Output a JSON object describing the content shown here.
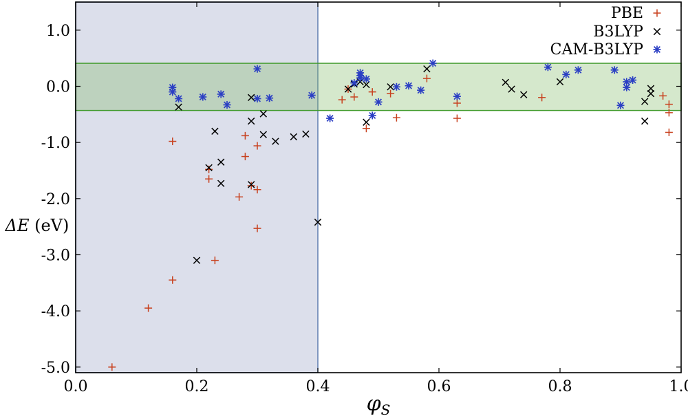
{
  "chart_data": {
    "type": "scatter",
    "xlabel": "φ",
    "xlabel_sub": "S",
    "ylabel": "ΔE",
    "ylabel_unit": " (eV)",
    "xlim": [
      0.0,
      1.0
    ],
    "ylim": [
      -5.1,
      1.5
    ],
    "xticks": [
      0.0,
      0.2,
      0.4,
      0.6,
      0.8,
      1.0
    ],
    "xtick_labels": [
      "0.0",
      "0.2",
      "0.4",
      "0.6",
      "0.8",
      "1.0"
    ],
    "yticks": [
      1.0,
      0.0,
      -1.0,
      -2.0,
      -3.0,
      -4.0,
      -5.0
    ],
    "ytick_labels": [
      "1.0",
      "0.0",
      "-1.0",
      "-2.0",
      "-3.0",
      "-4.0",
      "-5.0"
    ],
    "grid": false,
    "legend_position": "top-right",
    "shaded_regions": [
      {
        "kind": "vertical",
        "x_range": [
          0.0,
          0.4
        ],
        "color": "#8c96be"
      },
      {
        "kind": "horizontal",
        "y_range": [
          -0.43,
          0.41
        ],
        "color": "#7bb661"
      }
    ],
    "series": [
      {
        "name": "PBE",
        "marker": "plus",
        "color": "#c8411e",
        "points": [
          [
            0.06,
            -5.0
          ],
          [
            0.12,
            -3.95
          ],
          [
            0.16,
            -3.45
          ],
          [
            0.16,
            -0.98
          ],
          [
            0.22,
            -1.48
          ],
          [
            0.22,
            -1.65
          ],
          [
            0.23,
            -3.1
          ],
          [
            0.27,
            -1.97
          ],
          [
            0.28,
            -1.25
          ],
          [
            0.28,
            -0.88
          ],
          [
            0.29,
            -1.77
          ],
          [
            0.3,
            -1.06
          ],
          [
            0.3,
            -1.84
          ],
          [
            0.3,
            -2.53
          ],
          [
            0.44,
            -0.24
          ],
          [
            0.45,
            -0.05
          ],
          [
            0.46,
            -0.19
          ],
          [
            0.48,
            -0.75
          ],
          [
            0.49,
            -0.1
          ],
          [
            0.52,
            -0.13
          ],
          [
            0.53,
            -0.56
          ],
          [
            0.58,
            0.14
          ],
          [
            0.63,
            -0.3
          ],
          [
            0.63,
            -0.57
          ],
          [
            0.77,
            -0.2
          ],
          [
            0.97,
            -0.17
          ],
          [
            0.98,
            -0.32
          ],
          [
            0.98,
            -0.47
          ],
          [
            0.98,
            -0.82
          ]
        ]
      },
      {
        "name": "B3LYP",
        "marker": "cross",
        "color": "#000000",
        "points": [
          [
            0.17,
            -0.37
          ],
          [
            0.2,
            -3.1
          ],
          [
            0.22,
            -1.45
          ],
          [
            0.23,
            -0.8
          ],
          [
            0.24,
            -1.35
          ],
          [
            0.24,
            -1.73
          ],
          [
            0.29,
            -1.75
          ],
          [
            0.29,
            -0.2
          ],
          [
            0.29,
            -0.62
          ],
          [
            0.31,
            -0.49
          ],
          [
            0.31,
            -0.86
          ],
          [
            0.33,
            -0.98
          ],
          [
            0.36,
            -0.9
          ],
          [
            0.38,
            -0.85
          ],
          [
            0.4,
            -2.42
          ],
          [
            0.45,
            -0.05
          ],
          [
            0.46,
            0.04
          ],
          [
            0.47,
            0.08
          ],
          [
            0.48,
            -0.64
          ],
          [
            0.48,
            0.03
          ],
          [
            0.52,
            -0.01
          ],
          [
            0.58,
            0.31
          ],
          [
            0.71,
            0.07
          ],
          [
            0.72,
            -0.05
          ],
          [
            0.74,
            -0.15
          ],
          [
            0.8,
            0.08
          ],
          [
            0.94,
            -0.27
          ],
          [
            0.94,
            -0.62
          ],
          [
            0.95,
            -0.04
          ],
          [
            0.95,
            -0.13
          ]
        ]
      },
      {
        "name": "CAM-B3LYP",
        "marker": "asterisk",
        "color": "#2b3fc4",
        "points": [
          [
            0.16,
            -0.02
          ],
          [
            0.16,
            -0.1
          ],
          [
            0.17,
            -0.22
          ],
          [
            0.21,
            -0.19
          ],
          [
            0.24,
            -0.14
          ],
          [
            0.25,
            -0.33
          ],
          [
            0.3,
            0.31
          ],
          [
            0.3,
            -0.22
          ],
          [
            0.32,
            -0.21
          ],
          [
            0.39,
            -0.16
          ],
          [
            0.42,
            -0.57
          ],
          [
            0.46,
            0.06
          ],
          [
            0.47,
            0.15
          ],
          [
            0.47,
            0.19
          ],
          [
            0.47,
            0.24
          ],
          [
            0.48,
            0.13
          ],
          [
            0.49,
            -0.52
          ],
          [
            0.5,
            -0.28
          ],
          [
            0.53,
            -0.01
          ],
          [
            0.55,
            0.01
          ],
          [
            0.57,
            -0.07
          ],
          [
            0.59,
            0.41
          ],
          [
            0.63,
            -0.18
          ],
          [
            0.78,
            0.34
          ],
          [
            0.81,
            0.21
          ],
          [
            0.83,
            0.29
          ],
          [
            0.89,
            0.29
          ],
          [
            0.9,
            -0.34
          ],
          [
            0.91,
            0.08
          ],
          [
            0.91,
            -0.02
          ],
          [
            0.92,
            0.11
          ]
        ]
      }
    ]
  }
}
